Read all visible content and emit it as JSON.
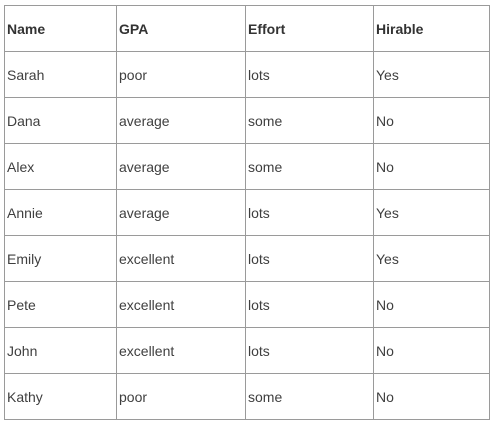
{
  "table": {
    "headers": [
      "Name",
      "GPA",
      "Effort",
      "Hirable"
    ],
    "rows": [
      [
        "Sarah",
        "poor",
        "lots",
        "Yes"
      ],
      [
        "Dana",
        "average",
        "some",
        "No"
      ],
      [
        "Alex",
        "average",
        "some",
        "No"
      ],
      [
        "Annie",
        "average",
        "lots",
        "Yes"
      ],
      [
        "Emily",
        "excellent",
        "lots",
        "Yes"
      ],
      [
        "Pete",
        "excellent",
        "lots",
        "No"
      ],
      [
        "John",
        "excellent",
        "lots",
        "No"
      ],
      [
        "Kathy",
        "poor",
        "some",
        "No"
      ]
    ]
  }
}
